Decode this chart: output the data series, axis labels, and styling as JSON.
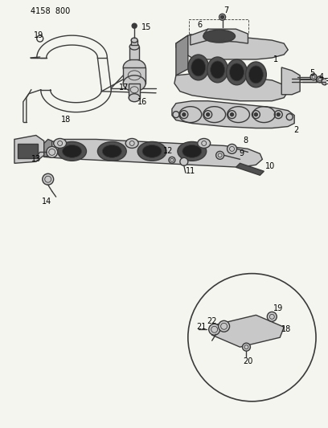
{
  "bg_color": "#f5f5f0",
  "line_color": "#3a3a3a",
  "header_text": "4158 800",
  "fig_width": 4.08,
  "fig_height": 5.33,
  "dpi": 100,
  "lw_main": 1.0,
  "lw_thick": 1.5,
  "lw_thin": 0.6,
  "gray_fill": "#909090",
  "light_gray": "#c8c8c8",
  "dark_gray": "#505050"
}
